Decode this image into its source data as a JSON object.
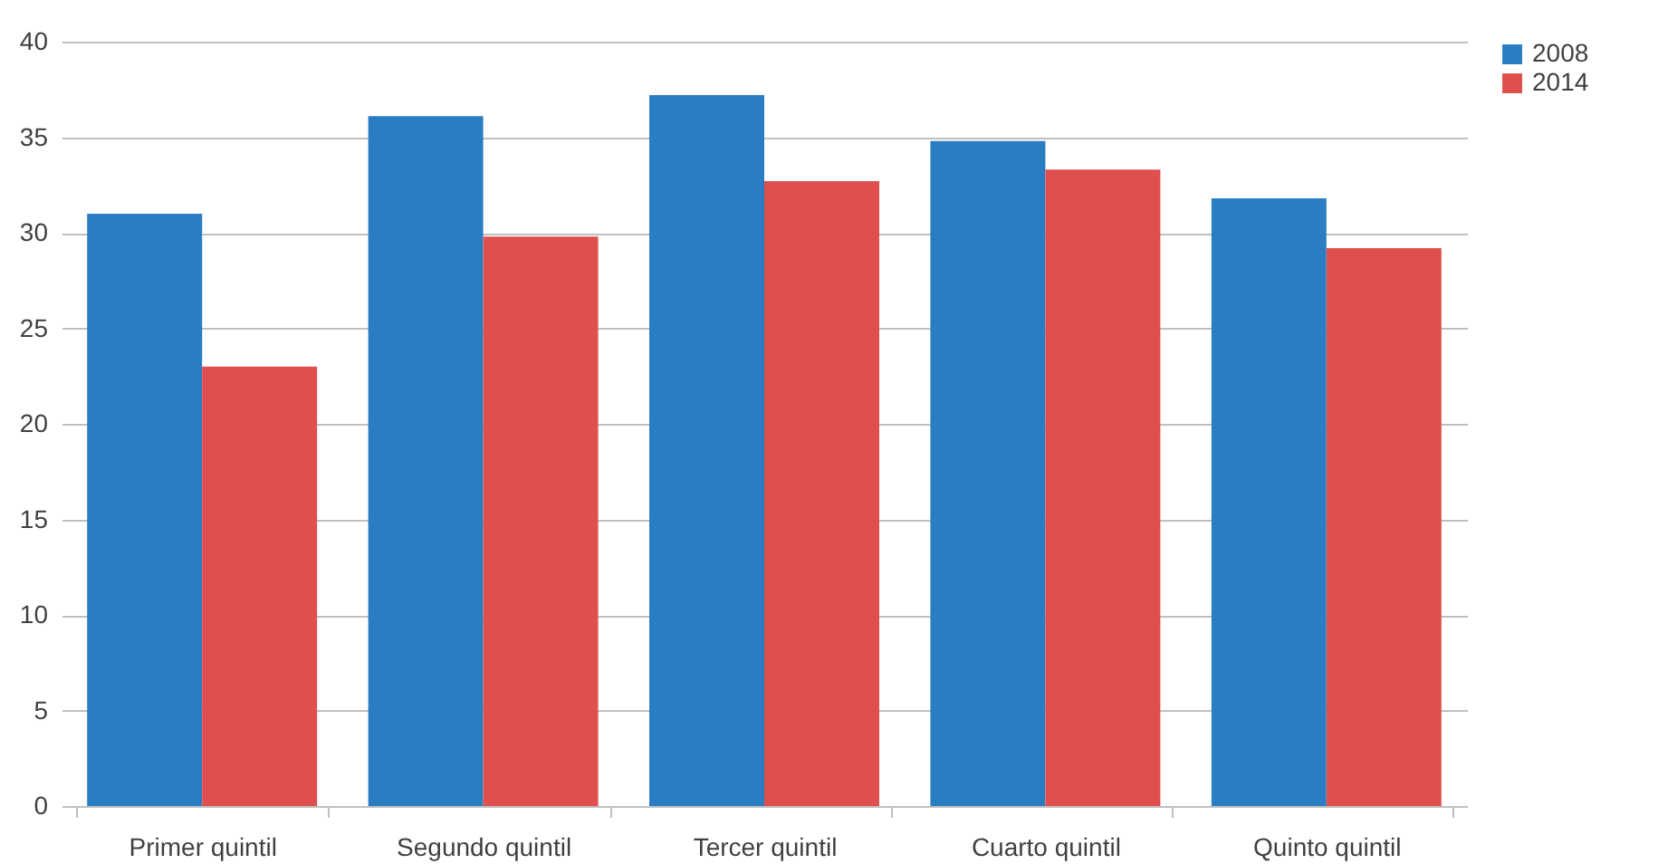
{
  "chart_data": {
    "type": "bar",
    "categories": [
      "Primer quintil",
      "Segundo quintil",
      "Tercer quintil",
      "Cuarto quintil",
      "Quinto quintil"
    ],
    "series": [
      {
        "name": "2008",
        "color": "#2a7dc2",
        "values": [
          31.0,
          36.1,
          37.2,
          34.8,
          31.8
        ]
      },
      {
        "name": "2014",
        "color": "#df4f4d",
        "values": [
          23.0,
          29.8,
          32.7,
          33.3,
          29.2
        ]
      }
    ],
    "ylim": [
      0,
      40
    ],
    "yticks": [
      0,
      5,
      10,
      15,
      20,
      25,
      30,
      35,
      40
    ],
    "grid": "y",
    "legend": "right"
  }
}
